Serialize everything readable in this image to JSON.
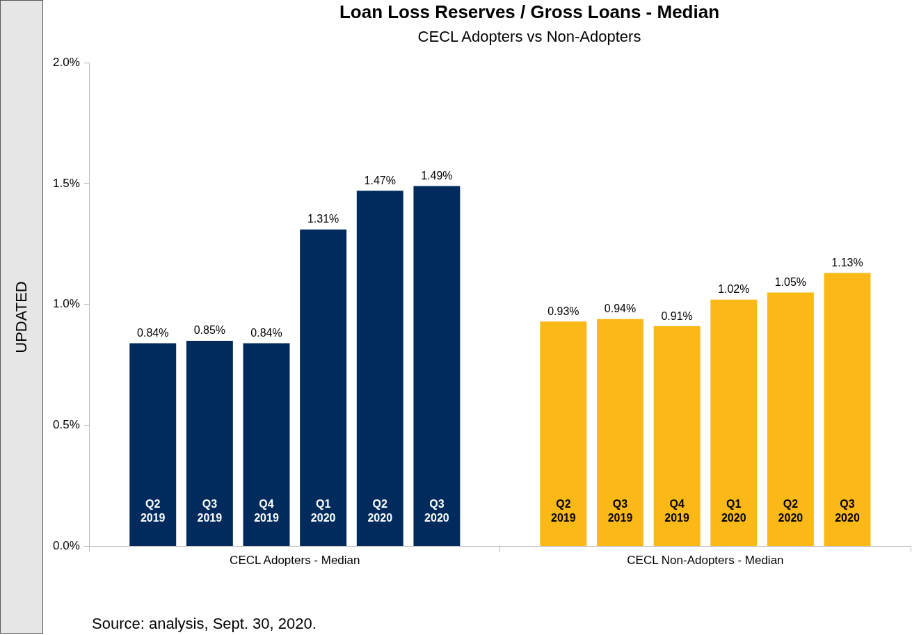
{
  "chart_data": {
    "type": "bar",
    "title": "Loan Loss Reserves / Gross Loans - Median",
    "subtitle": "CECL Adopters  vs Non-Adopters",
    "categories": [
      "CECL Adopters - Median",
      "CECL Non-Adopters - Median"
    ],
    "series": [
      {
        "name": "Q2 2019",
        "colors": [
          "#002b5c",
          "#fbb917"
        ],
        "values": [
          0.84,
          0.93
        ],
        "value_labels": [
          "0.84%",
          "0.93%"
        ]
      },
      {
        "name": "Q3 2019",
        "colors": [
          "#002b5c",
          "#fbb917"
        ],
        "values": [
          0.85,
          0.94
        ],
        "value_labels": [
          "0.85%",
          "0.94%"
        ]
      },
      {
        "name": "Q4 2019",
        "colors": [
          "#002b5c",
          "#fbb917"
        ],
        "values": [
          0.84,
          0.91
        ],
        "value_labels": [
          "0.84%",
          "0.91%"
        ]
      },
      {
        "name": "Q1 2020",
        "colors": [
          "#002b5c",
          "#fbb917"
        ],
        "values": [
          1.31,
          1.02
        ],
        "value_labels": [
          "1.31%",
          "1.02%"
        ]
      },
      {
        "name": "Q2 2020",
        "colors": [
          "#002b5c",
          "#fbb917"
        ],
        "values": [
          1.47,
          1.05
        ],
        "value_labels": [
          "1.47%",
          "1.05%"
        ]
      },
      {
        "name": "Q3 2020",
        "colors": [
          "#002b5c",
          "#fbb917"
        ],
        "values": [
          1.49,
          1.13
        ],
        "value_labels": [
          "1.49%",
          "1.13%"
        ]
      }
    ],
    "ylim": [
      0,
      2
    ],
    "yticks": [
      {
        "value": 0,
        "label": "0.0%"
      },
      {
        "value": 0.5,
        "label": "0.5%"
      },
      {
        "value": 1,
        "label": "1.0%"
      },
      {
        "value": 1.5,
        "label": "1.5%"
      },
      {
        "value": 2,
        "label": "2.0%"
      }
    ],
    "grid": false,
    "legend": false,
    "annotations": [
      "UPDATED",
      "Source: analysis, Sept. 30, 2020."
    ]
  }
}
